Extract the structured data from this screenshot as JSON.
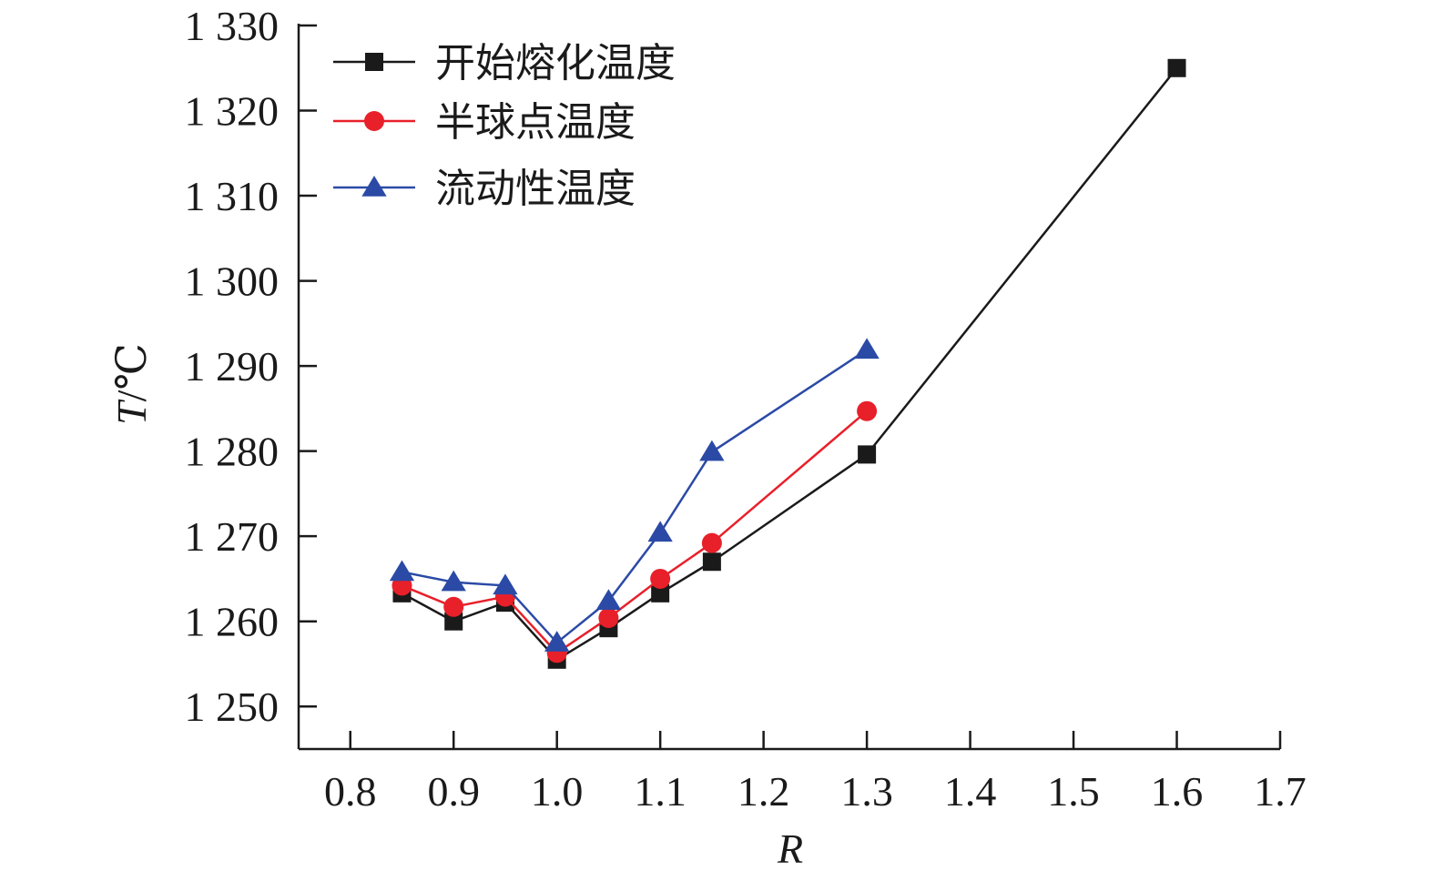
{
  "chart_data": {
    "type": "line",
    "title": "",
    "xlabel": "R",
    "ylabel_var": "T",
    "ylabel_unit": "/℃",
    "xlim": [
      0.75,
      1.7
    ],
    "ylim": [
      1245,
      1330
    ],
    "x_ticks": [
      0.8,
      0.9,
      1.0,
      1.1,
      1.2,
      1.3,
      1.4,
      1.5,
      1.6,
      1.7
    ],
    "x_tick_labels": [
      "0.8",
      "0.9",
      "1.0",
      "1.1",
      "1.2",
      "1.3",
      "1.4",
      "1.5",
      "1.6",
      "1.7"
    ],
    "y_ticks": [
      1250,
      1260,
      1270,
      1280,
      1290,
      1300,
      1310,
      1320,
      1330
    ],
    "y_tick_labels": [
      "1 250",
      "1 260",
      "1 270",
      "1 280",
      "1 290",
      "1 300",
      "1 310",
      "1 320",
      "1 330"
    ],
    "grid": false,
    "legend_position": "top-left",
    "series": [
      {
        "name": "开始熔化温度",
        "color": "#1a1a1a",
        "marker": "square",
        "x": [
          0.85,
          0.9,
          0.95,
          1.0,
          1.05,
          1.1,
          1.15,
          1.3,
          1.6
        ],
        "values": [
          1263.3,
          1260.0,
          1262.2,
          1255.5,
          1259.2,
          1263.3,
          1267.0,
          1279.6,
          1325.0
        ]
      },
      {
        "name": "半球点温度",
        "color": "#e8202a",
        "marker": "circle",
        "x": [
          0.85,
          0.9,
          0.95,
          1.0,
          1.05,
          1.1,
          1.15,
          1.3
        ],
        "values": [
          1264.2,
          1261.7,
          1262.9,
          1256.3,
          1260.4,
          1265.0,
          1269.2,
          1284.7
        ]
      },
      {
        "name": "流动性温度",
        "color": "#2b4aa6",
        "marker": "triangle",
        "x": [
          0.85,
          0.9,
          0.95,
          1.0,
          1.05,
          1.1,
          1.15,
          1.3
        ],
        "values": [
          1265.8,
          1264.6,
          1264.2,
          1257.5,
          1262.4,
          1270.4,
          1279.9,
          1291.9
        ]
      }
    ]
  }
}
